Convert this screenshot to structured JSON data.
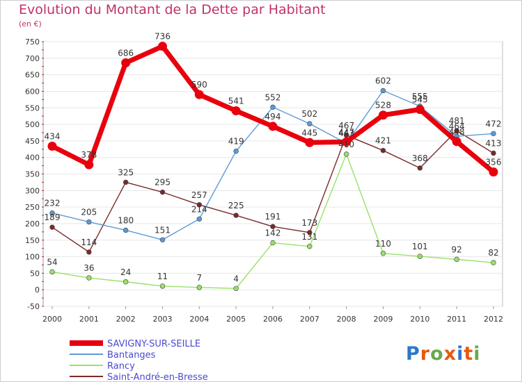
{
  "header": {
    "title": "Evolution du Montant de la Dette par Habitant",
    "unit": "(en €)"
  },
  "brand": {
    "name": "Proxiti"
  },
  "chart_data": {
    "type": "line",
    "title": "Evolution du Montant de la Dette par Habitant",
    "ylabel": "(en €)",
    "xlabel": "",
    "x": [
      "2000",
      "2001",
      "2002",
      "2003",
      "2004",
      "2005",
      "2006",
      "2007",
      "2008",
      "2009",
      "2010",
      "2011",
      "2012"
    ],
    "ylim": [
      -50,
      750
    ],
    "yticks": [
      -50,
      0,
      50,
      100,
      150,
      200,
      250,
      300,
      350,
      400,
      450,
      500,
      550,
      600,
      650,
      700,
      750
    ],
    "grid": true,
    "legend_position": "bottom-left",
    "series": [
      {
        "name": "SAVIGNY-SUR-SEILLE",
        "color": "#e8000d",
        "emphasis": "thick",
        "values": [
          434,
          378,
          686,
          736,
          590,
          541,
          494,
          445,
          447,
          528,
          545,
          448,
          356
        ],
        "labels": [
          "434",
          "378",
          "686",
          "736",
          "590",
          "541",
          "494",
          "445",
          "447",
          "528",
          "545",
          "448",
          "356"
        ]
      },
      {
        "name": "Bantanges",
        "color": "#5b9bd5",
        "values": [
          232,
          205,
          180,
          151,
          214,
          419,
          552,
          502,
          443,
          602,
          555,
          464,
          472
        ],
        "labels": [
          "232",
          "205",
          "180",
          "151",
          "214",
          "419",
          "552",
          "502",
          "443",
          "602",
          "555",
          "464",
          "472"
        ]
      },
      {
        "name": "Rancy",
        "color": "#99e06a",
        "values": [
          54,
          36,
          24,
          11,
          7,
          4,
          142,
          131,
          410,
          110,
          101,
          92,
          82
        ],
        "labels": [
          "54",
          "36",
          "24",
          "11",
          "7",
          "4",
          "142",
          "131",
          "410",
          "110",
          "101",
          "92",
          "82"
        ]
      },
      {
        "name": "Saint-André-en-Bresse",
        "color": "#7a2a2a",
        "values": [
          189,
          114,
          325,
          295,
          257,
          225,
          191,
          173,
          467,
          421,
          368,
          481,
          413
        ],
        "labels": [
          "189",
          "114",
          "325",
          "295",
          "257",
          "225",
          "191",
          "173",
          "467",
          "421",
          "368",
          "481",
          "413"
        ]
      }
    ]
  }
}
